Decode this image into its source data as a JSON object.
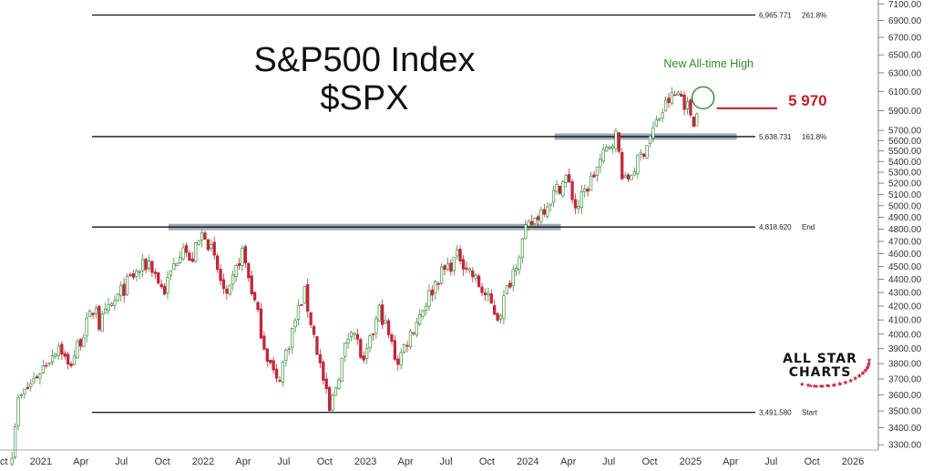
{
  "title": "S&P500 Index",
  "subtitle": "$SPX",
  "annotation_text": "New All-time High",
  "price_callout": "5 970",
  "logo": {
    "line1": "ALL STAR",
    "line2": "CHARTS",
    "emblem": "star-ring-icon"
  },
  "colors": {
    "up": "#3a8f3a",
    "down": "#c2263b",
    "fib_line": "#111111",
    "zone": "#8e9aab",
    "callout": "#c0202a",
    "annotation": "#2e8b2e",
    "axis_text": "#333333"
  },
  "chart_data": {
    "type": "candlestick",
    "title": "S&P500 Index",
    "subtitle": "$SPX",
    "y_axis": {
      "ticks": [
        3300,
        3400,
        3500,
        3600,
        3700,
        3800,
        3900,
        4000,
        4100,
        4200,
        4300,
        4400,
        4500,
        4600,
        4700,
        4800,
        4900,
        5000,
        5100,
        5200,
        5300,
        5400,
        5500,
        5600,
        5700,
        5900,
        6100,
        6300,
        6500,
        6700,
        6900,
        7100
      ],
      "tick_labels": [
        "3300.00",
        "3400.00",
        "3500.00",
        "3600.00",
        "3700.00",
        "3800.00",
        "3900.00",
        "4000.00",
        "4100.00",
        "4200.00",
        "4300.00",
        "4400.00",
        "4500.00",
        "4600.00",
        "4700.00",
        "4800.00",
        "4900.00",
        "5000.00",
        "5100.00",
        "5200.00",
        "5300.00",
        "5400.00",
        "5500.00",
        "5600.00",
        "5700.00",
        "5900.00",
        "6100.00",
        "6300.00",
        "6500.00",
        "6700.00",
        "6900.00",
        "7100.00"
      ],
      "range": [
        3270,
        7150
      ],
      "scale": "log"
    },
    "x_axis": {
      "tick_labels": [
        "ct",
        "2021",
        "Apr",
        "Jul",
        "Oct",
        "2022",
        "Apr",
        "Jul",
        "Oct",
        "2023",
        "Apr",
        "Jul",
        "Oct",
        "2024",
        "Apr",
        "Jul",
        "Oct",
        "2025",
        "Apr",
        "Jul",
        "Oct",
        "2026"
      ],
      "tick_dates": [
        "2020-10-01",
        "2021-01-01",
        "2021-04-01",
        "2021-07-01",
        "2021-10-01",
        "2022-01-01",
        "2022-04-01",
        "2022-07-01",
        "2022-10-01",
        "2023-01-01",
        "2023-04-01",
        "2023-07-01",
        "2023-10-01",
        "2024-01-01",
        "2024-04-01",
        "2024-07-01",
        "2024-10-01",
        "2025-01-01",
        "2025-04-01",
        "2025-07-01",
        "2025-10-01",
        "2026-01-01"
      ],
      "range": [
        "2020-10-01",
        "2026-02-15"
      ]
    },
    "fib_levels": [
      {
        "value": 6965.771,
        "label": "6,965.771",
        "tag": "261.8%"
      },
      {
        "value": 5638.731,
        "label": "5,638.731",
        "tag": "161.8%"
      },
      {
        "value": 4818.62,
        "label": "4,818.620",
        "tag": "End"
      },
      {
        "value": 3491.58,
        "label": "3,491.580",
        "tag": "Start"
      }
    ],
    "zones": [
      {
        "from": "2021-10-15",
        "to": "2024-03-15",
        "value": 4818.62
      },
      {
        "from": "2024-03-01",
        "to": "2025-04-15",
        "value": 5638.73
      }
    ],
    "callout": {
      "value": 5970,
      "label": "5 970",
      "from": "2025-03-01",
      "to": "2025-07-15"
    },
    "annotation": {
      "text": "New All-time High",
      "date": "2025-01-21",
      "value": 6090
    },
    "path": [
      [
        "2020-10-28",
        3270
      ],
      [
        "2020-11-09",
        3550
      ],
      [
        "2020-12-31",
        3756
      ],
      [
        "2021-02-12",
        3934
      ],
      [
        "2021-03-04",
        3768
      ],
      [
        "2021-05-07",
        4232
      ],
      [
        "2021-05-12",
        4063
      ],
      [
        "2021-07-23",
        4411
      ],
      [
        "2021-09-02",
        4537
      ],
      [
        "2021-10-04",
        4300
      ],
      [
        "2021-11-18",
        4705
      ],
      [
        "2021-12-01",
        4513
      ],
      [
        "2022-01-03",
        4796
      ],
      [
        "2022-02-24",
        4225
      ],
      [
        "2022-03-29",
        4631
      ],
      [
        "2022-05-20",
        3900
      ],
      [
        "2022-06-16",
        3667
      ],
      [
        "2022-08-16",
        4305
      ],
      [
        "2022-10-12",
        3491
      ],
      [
        "2022-12-01",
        4080
      ],
      [
        "2022-12-28",
        3783
      ],
      [
        "2023-02-02",
        4179
      ],
      [
        "2023-03-13",
        3808
      ],
      [
        "2023-06-15",
        4425
      ],
      [
        "2023-07-31",
        4588
      ],
      [
        "2023-10-27",
        4117
      ],
      [
        "2023-12-28",
        4783
      ],
      [
        "2024-03-28",
        5254
      ],
      [
        "2024-04-19",
        4967
      ],
      [
        "2024-07-16",
        5667
      ],
      [
        "2024-08-05",
        5186
      ],
      [
        "2024-09-06",
        5408
      ],
      [
        "2024-11-11",
        6001
      ],
      [
        "2024-12-06",
        6090
      ],
      [
        "2025-01-13",
        5773
      ],
      [
        "2025-01-21",
        6090
      ]
    ]
  }
}
